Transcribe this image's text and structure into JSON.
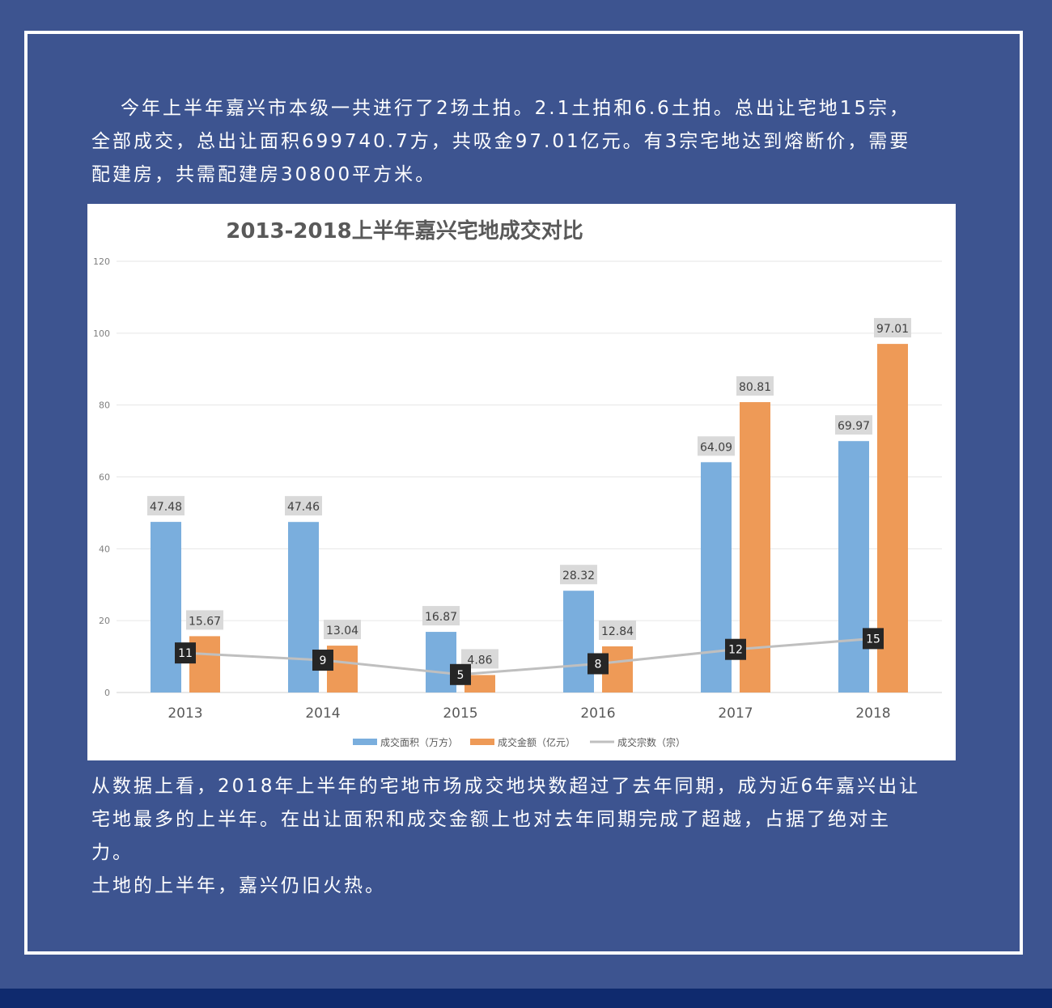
{
  "article": {
    "intro": "今年上半年嘉兴市本级一共进行了2场土拍。2.1土拍和6.6土拍。总出让宅地15宗，全部成交，总出让面积699740.7方，共吸金97.01亿元。有3宗宅地达到熔断价，需要配建房，共需配建房30800平方米。",
    "conclusion": "从数据上看，2018年上半年的宅地市场成交地块数超过了去年同期，成为近6年嘉兴出让宅地最多的上半年。在出让面积和成交金额上也对去年同期完成了超越，占据了绝对主力。",
    "closing": "土地的上半年，嘉兴仍旧火热。"
  },
  "colors": {
    "background": "#3d5490",
    "frame": "#ffffff",
    "area_bar": "#7aaedd",
    "amount_bar": "#ee9a57",
    "count_line": "#bfbfbf"
  },
  "chart_data": {
    "type": "bar",
    "title": "2013-2018上半年嘉兴宅地成交对比",
    "categories": [
      "2013",
      "2014",
      "2015",
      "2016",
      "2017",
      "2018"
    ],
    "ylim": [
      0,
      120
    ],
    "yticks": [
      0,
      20,
      40,
      60,
      80,
      100,
      120
    ],
    "grid": true,
    "legend_position": "bottom",
    "series": [
      {
        "name": "成交面积（万方）",
        "type": "bar",
        "color": "#7aaedd",
        "values": [
          47.48,
          47.46,
          16.87,
          28.32,
          64.09,
          69.97
        ],
        "labels": [
          "47.48",
          "47.46",
          "16.87",
          "28.32",
          "64.09",
          "69.97"
        ]
      },
      {
        "name": "成交金额（亿元）",
        "type": "bar",
        "color": "#ee9a57",
        "values": [
          15.67,
          13.04,
          4.86,
          12.84,
          80.81,
          97.01
        ],
        "labels": [
          "15.67",
          "13.04",
          "4.86",
          "12.84",
          "80.81",
          "97.01"
        ]
      },
      {
        "name": "成交宗数（宗）",
        "type": "line",
        "color": "#bfbfbf",
        "values": [
          11,
          9,
          5,
          8,
          12,
          15
        ],
        "labels": [
          "11",
          "9",
          "5",
          "8",
          "12",
          "15"
        ]
      }
    ]
  }
}
